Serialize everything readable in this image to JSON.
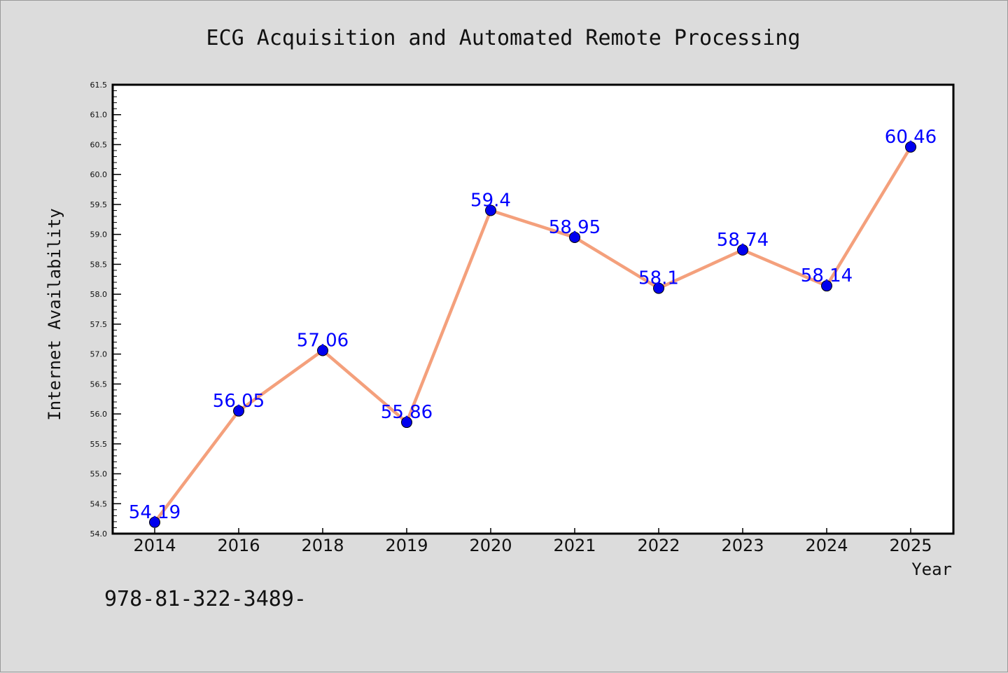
{
  "chart_data": {
    "type": "line",
    "title": "ECG Acquisition and Automated Remote Processing",
    "xlabel": "Year",
    "ylabel": "Internet Availability",
    "categories": [
      "2014",
      "2016",
      "2018",
      "2019",
      "2020",
      "2021",
      "2022",
      "2023",
      "2024",
      "2025"
    ],
    "series": [
      {
        "values": [
          54.19,
          56.05,
          57.06,
          55.86,
          59.4,
          58.95,
          58.1,
          58.74,
          58.14,
          60.46
        ],
        "data_labels": [
          "54.19",
          "56.05",
          "57.06",
          "55.86",
          "59.4",
          "58.95",
          "58.1",
          "58.74",
          "58.14",
          "60.46"
        ],
        "line_color": "#f4a07c",
        "marker_color": "#0000ee"
      }
    ],
    "ylim": [
      54.0,
      61.5
    ],
    "yticks": [
      "54.0",
      "54.5",
      "55.0",
      "55.5",
      "56.0",
      "56.5",
      "57.0",
      "57.5",
      "58.0",
      "58.5",
      "59.0",
      "59.5",
      "60.0",
      "60.5",
      "61.0",
      "61.5"
    ],
    "grid": false,
    "legend": "none",
    "colors": {
      "background": "#dcdcdc",
      "plot_background": "#ffffff",
      "data_label": "#0000ff"
    }
  },
  "footer_text": "978-81-322-3489-"
}
